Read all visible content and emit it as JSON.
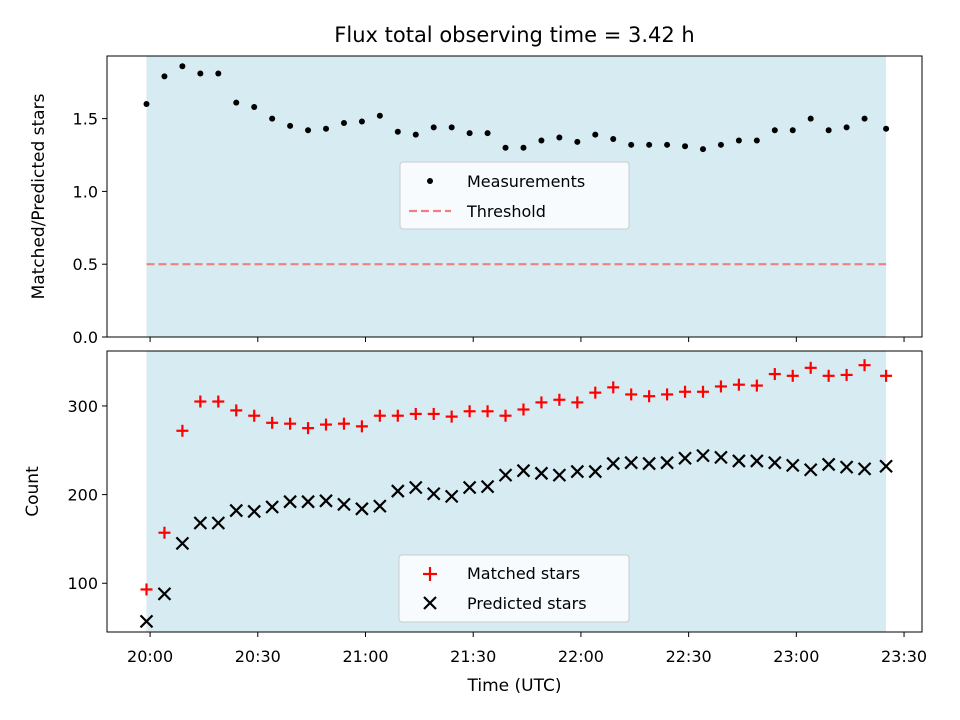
{
  "chart_data": [
    {
      "type": "scatter",
      "title": "Flux total observing time = 3.42 h",
      "ylabel": "Matched/Predicted stars",
      "xlabel": "",
      "ylim": [
        0,
        1.93
      ],
      "yticks": [
        "0.0",
        "0.5",
        "1.0",
        "1.5"
      ],
      "ytick_values": [
        0,
        0.5,
        1.0,
        1.5
      ],
      "shaded_span": [
        "19:59",
        "23:25"
      ],
      "shaded_color": "#add8e6",
      "legend_position": "center",
      "x": [
        "19:59",
        "20:04",
        "20:09",
        "20:14",
        "20:19",
        "20:24",
        "20:29",
        "20:34",
        "20:39",
        "20:44",
        "20:49",
        "20:54",
        "20:59",
        "21:04",
        "21:09",
        "21:14",
        "21:19",
        "21:24",
        "21:29",
        "21:34",
        "21:39",
        "21:44",
        "21:49",
        "21:54",
        "21:59",
        "22:04",
        "22:09",
        "22:14",
        "22:19",
        "22:24",
        "22:29",
        "22:34",
        "22:39",
        "22:44",
        "22:49",
        "22:54",
        "22:59",
        "23:04",
        "23:09",
        "23:14",
        "23:19",
        "23:25"
      ],
      "series": [
        {
          "name": "Measurements",
          "marker": "dot",
          "color": "#000000",
          "values": [
            1.6,
            1.79,
            1.86,
            1.81,
            1.81,
            1.61,
            1.58,
            1.5,
            1.45,
            1.42,
            1.43,
            1.47,
            1.48,
            1.52,
            1.41,
            1.39,
            1.44,
            1.44,
            1.4,
            1.4,
            1.3,
            1.3,
            1.35,
            1.37,
            1.34,
            1.39,
            1.36,
            1.32,
            1.32,
            1.32,
            1.31,
            1.29,
            1.32,
            1.35,
            1.35,
            1.42,
            1.42,
            1.5,
            1.42,
            1.44,
            1.5,
            1.43
          ]
        },
        {
          "name": "Threshold",
          "marker": "dashed-line",
          "color": "#f08080",
          "value": 0.5
        }
      ]
    },
    {
      "type": "scatter",
      "title": "",
      "ylabel": "Count",
      "xlabel": "Time (UTC)",
      "ylim": [
        45,
        362
      ],
      "yticks": [
        "100",
        "200",
        "300"
      ],
      "ytick_values": [
        100,
        200,
        300
      ],
      "xticks": [
        "20:00",
        "20:30",
        "21:00",
        "21:30",
        "22:00",
        "22:30",
        "23:00",
        "23:30"
      ],
      "xtick_values": [
        "20:00",
        "20:30",
        "21:00",
        "21:30",
        "22:00",
        "22:30",
        "23:00",
        "23:30"
      ],
      "xlim": [
        "19:48",
        "23:35"
      ],
      "legend_position": "lower center",
      "series": [
        {
          "name": "Matched stars",
          "marker": "plus",
          "color": "#ff0000",
          "values": [
            93,
            157,
            272,
            305,
            305,
            295,
            289,
            281,
            280,
            275,
            279,
            280,
            277,
            289,
            289,
            291,
            291,
            288,
            294,
            294,
            289,
            296,
            304,
            307,
            304,
            315,
            321,
            313,
            311,
            313,
            316,
            316,
            322,
            324,
            323,
            336,
            334,
            343,
            334,
            335,
            346,
            334
          ]
        },
        {
          "name": "Predicted stars",
          "marker": "x",
          "color": "#000000",
          "values": [
            57,
            88,
            145,
            168,
            168,
            182,
            181,
            186,
            192,
            192,
            193,
            189,
            184,
            187,
            204,
            208,
            201,
            198,
            208,
            209,
            222,
            227,
            224,
            222,
            226,
            226,
            235,
            236,
            235,
            236,
            241,
            244,
            242,
            238,
            238,
            236,
            233,
            228,
            234,
            231,
            229,
            232
          ]
        }
      ]
    }
  ]
}
